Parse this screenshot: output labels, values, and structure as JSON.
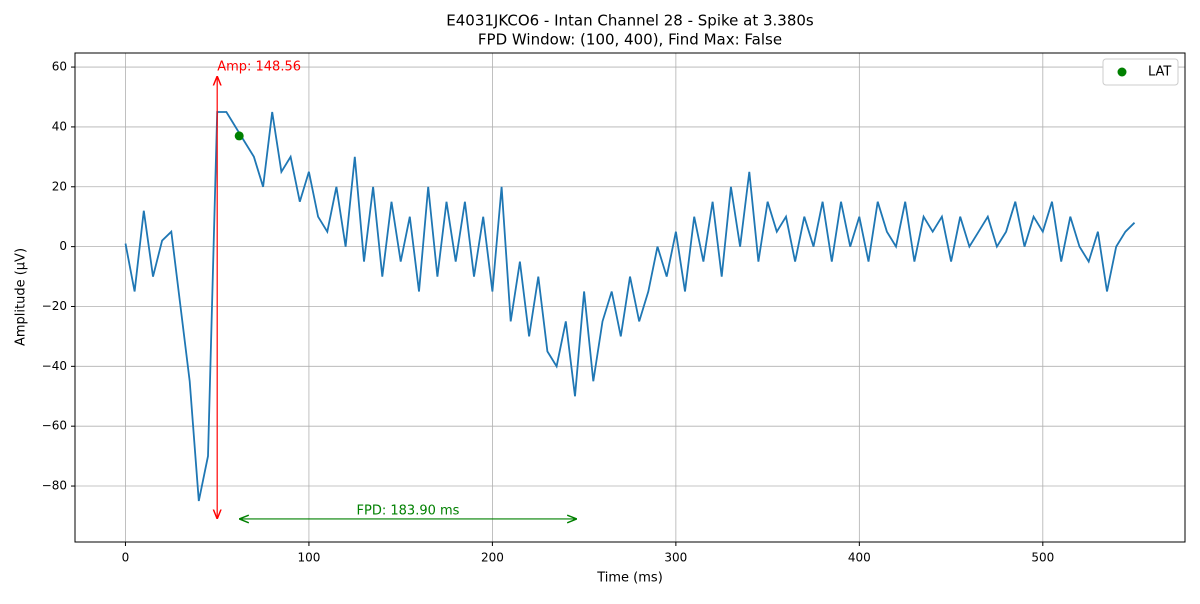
{
  "chart_data": {
    "type": "line",
    "title": "E4031JKCO6 - Intan Channel 28 - Spike at 3.380s",
    "subtitle": "FPD Window: (100, 400), Find Max: False",
    "x_label": "Time (ms)",
    "y_label": "Amplitude (μV)",
    "x": [
      0,
      5,
      10,
      15,
      20,
      25,
      30,
      35,
      40,
      45,
      50,
      55,
      60,
      65,
      70,
      75,
      80,
      85,
      90,
      95,
      100,
      105,
      110,
      115,
      120,
      125,
      130,
      135,
      140,
      145,
      150,
      155,
      160,
      165,
      170,
      175,
      180,
      185,
      190,
      195,
      200,
      205,
      210,
      215,
      220,
      225,
      230,
      235,
      240,
      245,
      250,
      255,
      260,
      265,
      270,
      275,
      280,
      285,
      290,
      295,
      300,
      305,
      310,
      315,
      320,
      325,
      330,
      335,
      340,
      345,
      350,
      355,
      360,
      365,
      370,
      375,
      380,
      385,
      390,
      395,
      400,
      405,
      410,
      415,
      420,
      425,
      430,
      435,
      440,
      445,
      450,
      455,
      460,
      465,
      470,
      475,
      480,
      485,
      490,
      495,
      500,
      505,
      510,
      515,
      520,
      525,
      530,
      535,
      540,
      545,
      550
    ],
    "series": [
      {
        "color": "#1f77b4",
        "values": [
          1,
          -15,
          12,
          -10,
          2,
          5,
          -20,
          -45,
          -85,
          -70,
          45,
          45,
          40,
          35,
          30,
          20,
          45,
          25,
          30,
          15,
          25,
          10,
          5,
          20,
          0,
          30,
          -5,
          20,
          -10,
          15,
          -5,
          10,
          -15,
          20,
          -10,
          15,
          -5,
          15,
          -10,
          10,
          -15,
          20,
          -25,
          -5,
          -30,
          -10,
          -35,
          -40,
          -25,
          -50,
          -15,
          -45,
          -25,
          -15,
          -30,
          -10,
          -25,
          -15,
          0,
          -10,
          5,
          -15,
          10,
          -5,
          15,
          -10,
          20,
          0,
          25,
          -5,
          15,
          5,
          10,
          -5,
          10,
          0,
          15,
          -5,
          15,
          0,
          10,
          -5,
          15,
          5,
          0,
          15,
          -5,
          10,
          5,
          10,
          -5,
          10,
          0,
          5,
          10,
          0,
          5,
          15,
          0,
          10,
          5,
          15,
          -5,
          10,
          0,
          -5,
          5,
          -15,
          0,
          5,
          8
        ]
      },
      {
        "name": "LAT",
        "color": "green",
        "marker": "o",
        "x": [
          62
        ],
        "values": [
          37
        ]
      }
    ],
    "annotations": [
      {
        "text": "Amp: 148.56",
        "color": "red",
        "x": [
          50,
          50
        ],
        "y": [
          -91,
          57
        ]
      },
      {
        "text": "FPD: 183.90 ms",
        "color": "green",
        "x": [
          62,
          246
        ],
        "y": [
          -91,
          -91
        ]
      }
    ],
    "xlim": [
      -27.5,
      577.5
    ],
    "ylim": [
      -98.7,
      64.7
    ],
    "xticks": [
      0,
      100,
      200,
      300,
      400,
      500
    ],
    "yticks": [
      {
        "value": -80,
        "label": "−80"
      },
      {
        "value": -60,
        "label": "−60"
      },
      {
        "value": -40,
        "label": "−40"
      },
      {
        "value": -20,
        "label": "−20"
      },
      0,
      20,
      40,
      60
    ],
    "grid": true,
    "legend": "upper right"
  }
}
